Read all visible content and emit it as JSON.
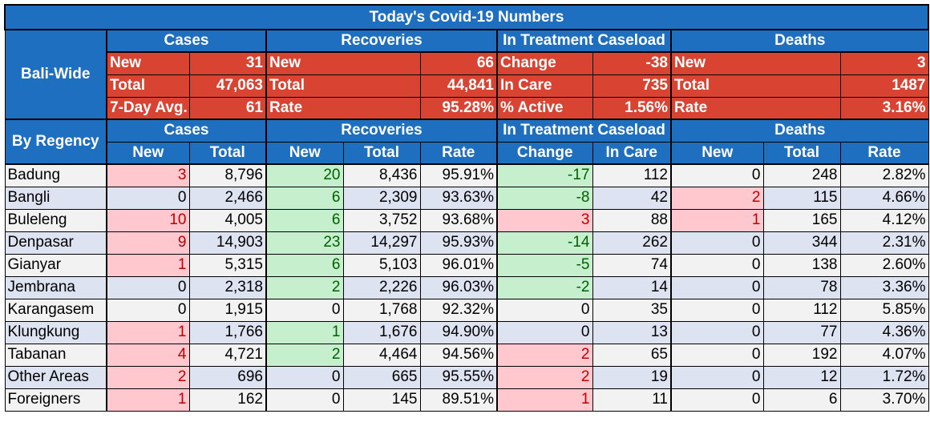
{
  "title": "Today's Covid-19 Numbers",
  "bali_wide": {
    "label": "Bali-Wide",
    "groups": [
      "Cases",
      "Recoveries",
      "In Treatment Caseload",
      "Deaths"
    ],
    "rows": [
      [
        [
          "New",
          "31"
        ],
        [
          "New",
          "66"
        ],
        [
          "Change",
          "-38"
        ],
        [
          "New",
          "3"
        ]
      ],
      [
        [
          "Total",
          "47,063"
        ],
        [
          "Total",
          "44,841"
        ],
        [
          "In Care",
          "735"
        ],
        [
          "Total",
          "1487"
        ]
      ],
      [
        [
          "7-Day Avg.",
          "61"
        ],
        [
          "Rate",
          "95.28%"
        ],
        [
          "% Active",
          "1.56%"
        ],
        [
          "Rate",
          "3.16%"
        ]
      ]
    ]
  },
  "by_regency": {
    "label": "By Regency",
    "groups": [
      "Cases",
      "Recoveries",
      "In Treatment Caseload",
      "Deaths"
    ],
    "subheaders": [
      "New",
      "Total",
      "New",
      "Total",
      "Rate",
      "Change",
      "In Care",
      "New",
      "Total",
      "Rate"
    ],
    "rows": [
      {
        "name": "Badung",
        "cells": [
          "3",
          "8,796",
          "20",
          "8,436",
          "95.91%",
          "-17",
          "112",
          "0",
          "248",
          "2.82%"
        ]
      },
      {
        "name": "Bangli",
        "cells": [
          "0",
          "2,466",
          "6",
          "2,309",
          "93.63%",
          "-8",
          "42",
          "2",
          "115",
          "4.66%"
        ]
      },
      {
        "name": "Buleleng",
        "cells": [
          "10",
          "4,005",
          "6",
          "3,752",
          "93.68%",
          "3",
          "88",
          "1",
          "165",
          "4.12%"
        ]
      },
      {
        "name": "Denpasar",
        "cells": [
          "9",
          "14,903",
          "23",
          "14,297",
          "95.93%",
          "-14",
          "262",
          "0",
          "344",
          "2.31%"
        ]
      },
      {
        "name": "Gianyar",
        "cells": [
          "1",
          "5,315",
          "6",
          "5,103",
          "96.01%",
          "-5",
          "74",
          "0",
          "138",
          "2.60%"
        ]
      },
      {
        "name": "Jembrana",
        "cells": [
          "0",
          "2,318",
          "2",
          "2,226",
          "96.03%",
          "-2",
          "14",
          "0",
          "78",
          "3.36%"
        ]
      },
      {
        "name": "Karangasem",
        "cells": [
          "0",
          "1,915",
          "0",
          "1,768",
          "92.32%",
          "0",
          "35",
          "0",
          "112",
          "5.85%"
        ]
      },
      {
        "name": "Klungkung",
        "cells": [
          "1",
          "1,766",
          "1",
          "1,676",
          "94.90%",
          "0",
          "13",
          "0",
          "77",
          "4.36%"
        ]
      },
      {
        "name": "Tabanan",
        "cells": [
          "4",
          "4,721",
          "2",
          "4,464",
          "94.56%",
          "2",
          "65",
          "0",
          "192",
          "4.07%"
        ]
      },
      {
        "name": "Other Areas",
        "cells": [
          "2",
          "696",
          "0",
          "665",
          "95.55%",
          "2",
          "19",
          "0",
          "12",
          "1.72%"
        ]
      },
      {
        "name": "Foreigners",
        "cells": [
          "1",
          "162",
          "0",
          "145",
          "89.51%",
          "1",
          "11",
          "0",
          "6",
          "3.70%"
        ]
      }
    ]
  },
  "colors": {
    "header_blue": "#1f6fc0",
    "header_red": "#d94432",
    "pink": "#ffc7ce",
    "green": "#c6efce"
  }
}
